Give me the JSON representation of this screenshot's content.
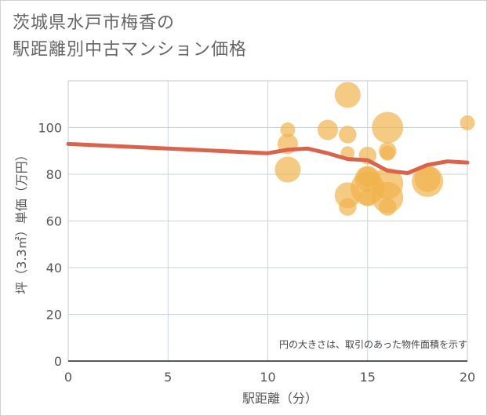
{
  "title_line1": "茨城県水戸市梅香の",
  "title_line2": "駅距離別中古マンション価格",
  "chart_data": {
    "type": "scatter",
    "title": "茨城県水戸市梅香の駅距離別中古マンション価格",
    "xlabel": "駅距離（分）",
    "ylabel": "坪（3.3㎡）単価（万円）",
    "xlim": [
      0,
      20
    ],
    "ylim": [
      0,
      120
    ],
    "xticks": [
      0,
      5,
      10,
      15,
      20
    ],
    "yticks": [
      0,
      20,
      40,
      60,
      80,
      100
    ],
    "grid": true,
    "note": "円の大きさは、取引のあった物件面積を示す",
    "bubble_color": "#f0b24a",
    "line_color": "#d9644b",
    "bubbles": [
      {
        "x": 11,
        "y": 99,
        "r": 1
      },
      {
        "x": 11,
        "y": 93,
        "r": 2
      },
      {
        "x": 11,
        "y": 82,
        "r": 3
      },
      {
        "x": 13,
        "y": 99,
        "r": 2
      },
      {
        "x": 14,
        "y": 114,
        "r": 3
      },
      {
        "x": 14,
        "y": 97,
        "r": 1.5
      },
      {
        "x": 14,
        "y": 89,
        "r": 0.8
      },
      {
        "x": 14,
        "y": 71,
        "r": 3
      },
      {
        "x": 14,
        "y": 66,
        "r": 1.5
      },
      {
        "x": 15,
        "y": 88,
        "r": 1.5
      },
      {
        "x": 15,
        "y": 79,
        "r": 2
      },
      {
        "x": 15,
        "y": 78,
        "r": 3
      },
      {
        "x": 15,
        "y": 74,
        "r": 4.5
      },
      {
        "x": 15,
        "y": 70,
        "r": 1.5
      },
      {
        "x": 16,
        "y": 100,
        "r": 4
      },
      {
        "x": 16,
        "y": 90,
        "r": 1.5
      },
      {
        "x": 16,
        "y": 89,
        "r": 1
      },
      {
        "x": 16,
        "y": 76,
        "r": 4
      },
      {
        "x": 16,
        "y": 70,
        "r": 4
      },
      {
        "x": 16,
        "y": 66,
        "r": 1.5
      },
      {
        "x": 18,
        "y": 78,
        "r": 3
      },
      {
        "x": 18,
        "y": 77,
        "r": 4
      },
      {
        "x": 20,
        "y": 102,
        "r": 1
      }
    ],
    "trend": {
      "x": [
        0,
        10,
        11,
        12,
        13,
        14,
        15,
        16,
        17,
        18,
        19,
        20
      ],
      "y": [
        93,
        89,
        90.5,
        91,
        89,
        86.5,
        86,
        81.5,
        80.5,
        84,
        85.5,
        85
      ]
    }
  }
}
